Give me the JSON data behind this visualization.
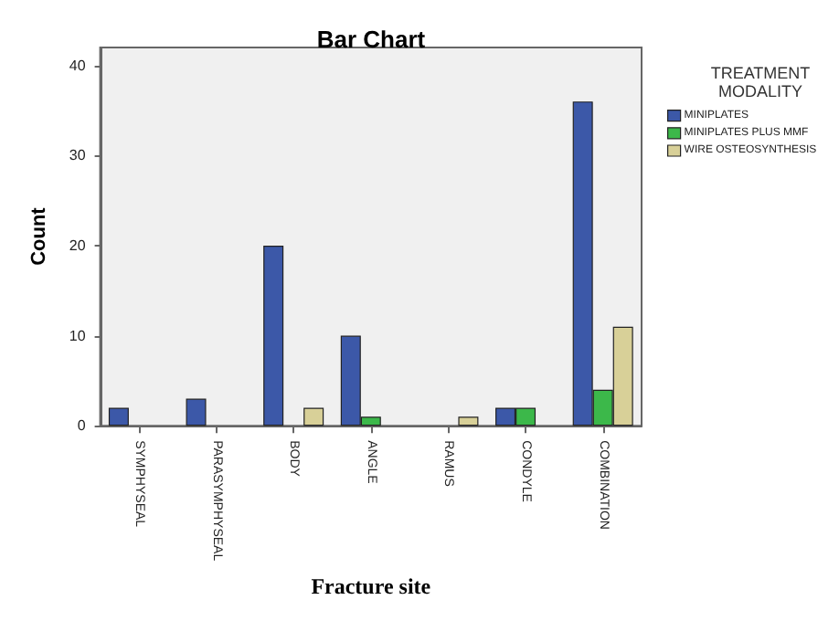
{
  "chart_data": {
    "type": "bar",
    "title": "Bar Chart",
    "xlabel": "Fracture site",
    "ylabel": "Count",
    "legend_title": "TREATMENT MODALITY",
    "categories": [
      "SYMPHYSEAL",
      "PARASYMPHYSEAL",
      "BODY",
      "ANGLE",
      "RAMUS",
      "CONDYLE",
      "COMBINATION"
    ],
    "series": [
      {
        "name": "MINIPLATES",
        "color": "#3c58a8",
        "values": [
          2,
          3,
          20,
          10,
          null,
          2,
          36
        ]
      },
      {
        "name": "MINIPLATES PLUS MMF",
        "color": "#3cb84a",
        "values": [
          null,
          null,
          null,
          1,
          null,
          2,
          4
        ]
      },
      {
        "name": "WIRE OSTEOSYNTHESIS",
        "color": "#d8d098",
        "values": [
          null,
          null,
          2,
          null,
          1,
          null,
          11
        ]
      }
    ],
    "ylim": [
      0,
      42
    ],
    "yticks": [
      0,
      10,
      20,
      30,
      40
    ],
    "grid": false,
    "legend": "right"
  }
}
